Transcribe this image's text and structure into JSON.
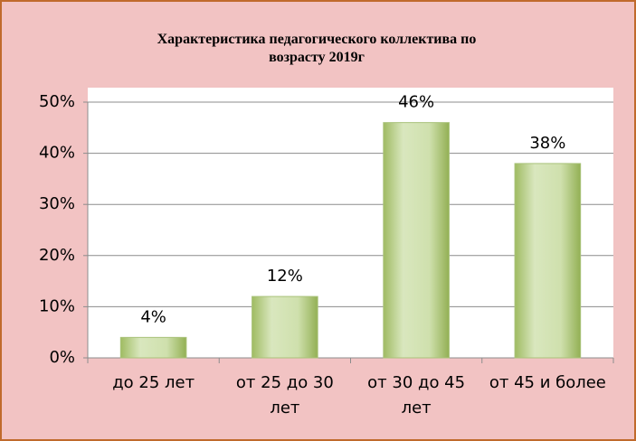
{
  "chart_data": {
    "type": "bar",
    "title": "Характеристика педагогического коллектива по возрасту 2019г",
    "categories": [
      "до 25 лет",
      "от 25 до 30 лет",
      "от 30 до 45 лет",
      "от 45 и более"
    ],
    "values": [
      4,
      12,
      46,
      38
    ],
    "value_labels": [
      "4%",
      "12%",
      "46%",
      "38%"
    ],
    "color": "#b5cc84",
    "ylim": [
      0,
      50
    ],
    "yticks": [
      {
        "value": 0,
        "label": "0%"
      },
      {
        "value": 10,
        "label": "10%"
      },
      {
        "value": 20,
        "label": "20%"
      },
      {
        "value": 30,
        "label": "30%"
      },
      {
        "value": 40,
        "label": "40%"
      },
      {
        "value": 50,
        "label": "50%"
      }
    ],
    "grid": true
  }
}
